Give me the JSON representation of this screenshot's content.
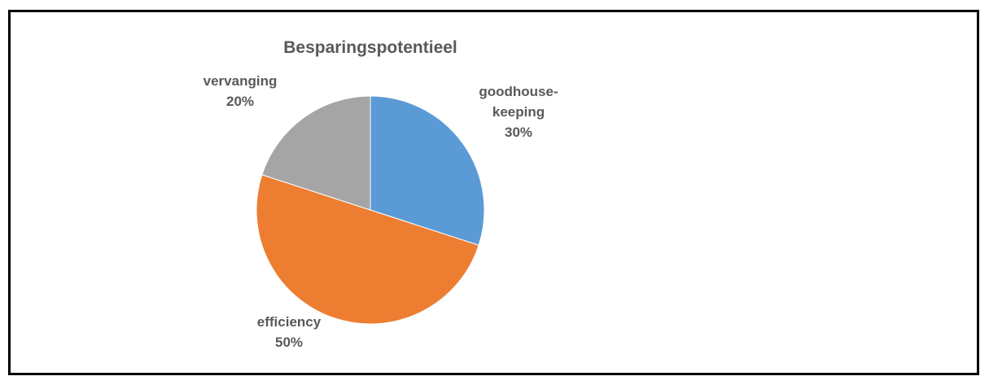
{
  "chart_data": {
    "type": "pie",
    "title": "Besparingspotentieel",
    "slices": [
      {
        "name": "goodhouse-keeping",
        "label_lines": [
          "goodhouse-",
          "keeping",
          "30%"
        ],
        "value": 30,
        "color": "#5B9BD5"
      },
      {
        "name": "efficiency",
        "label_lines": [
          "efficiency",
          "50%"
        ],
        "value": 50,
        "color": "#ED7D31"
      },
      {
        "name": "vervanging",
        "label_lines": [
          "vervanging",
          "20%"
        ],
        "value": 20,
        "color": "#A5A5A5"
      }
    ],
    "legend": "none",
    "start_angle_deg": 0,
    "direction": "clockwise"
  }
}
